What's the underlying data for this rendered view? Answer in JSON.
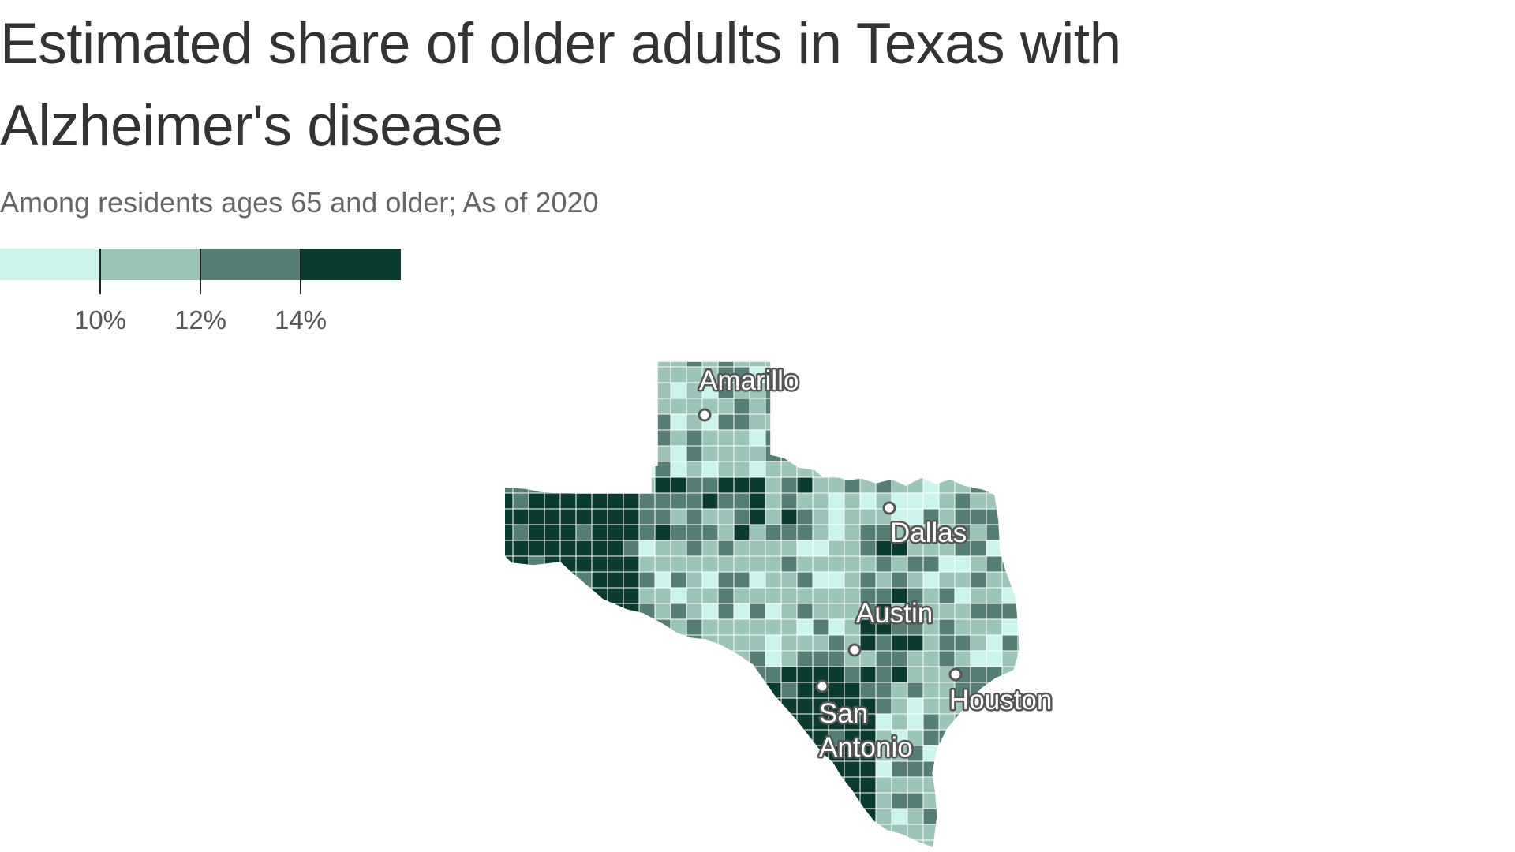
{
  "title": "Estimated share of older adults in Texas with Alzheimer's disease",
  "subtitle": "Among residents ages 65 and older; As of 2020",
  "legend": {
    "colors": [
      "#cdf4ec",
      "#9cc4b8",
      "#567e74",
      "#0b3a2e"
    ],
    "ticks": [
      "10%",
      "12%",
      "14%"
    ]
  },
  "map": {
    "region": "Texas counties",
    "cities": [
      {
        "name": "Amarillo"
      },
      {
        "name": "Dallas"
      },
      {
        "name": "Austin"
      },
      {
        "name": "San Antonio"
      },
      {
        "name": "Houston"
      }
    ]
  },
  "chart_data": {
    "type": "heatmap",
    "bins": [
      "under 10%",
      "10%–12%",
      "12%–14%",
      "14% and over"
    ],
    "legend_thresholds": [
      10,
      12,
      14
    ],
    "unit": "%"
  }
}
